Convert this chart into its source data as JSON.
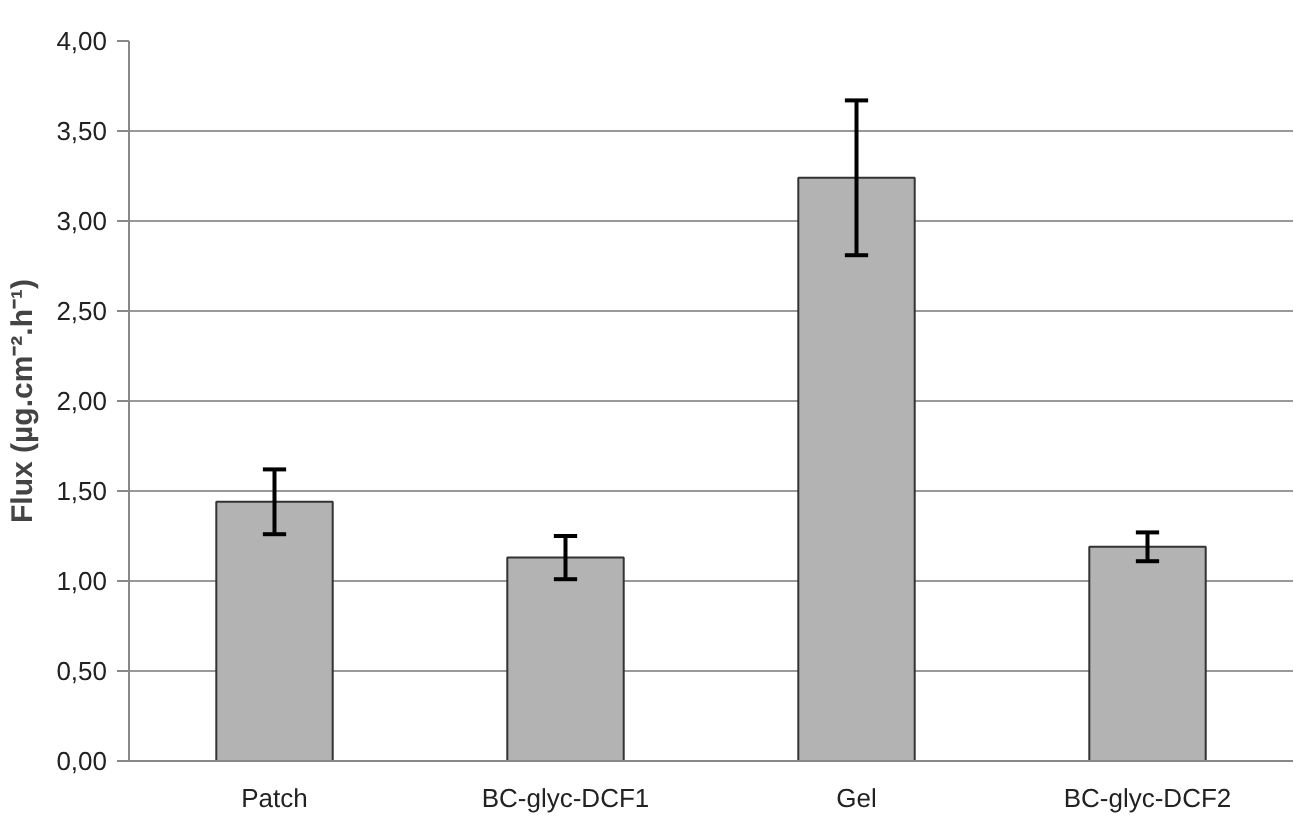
{
  "chart_data": {
    "type": "bar",
    "ylabel": "Flux (µg.cm⁻².h⁻¹)",
    "categories": [
      "Patch",
      "BC-glyc-DCF1",
      "Gel",
      "BC-glyc-DCF2"
    ],
    "values": [
      1.44,
      1.13,
      3.24,
      1.19
    ],
    "errors": [
      0.18,
      0.12,
      0.43,
      0.08
    ],
    "color": "#b3b3b3",
    "ylim": [
      0,
      4
    ],
    "yticks": [
      {
        "value": 0,
        "label": "0,00"
      },
      {
        "value": 0.5,
        "label": "0,50"
      },
      {
        "value": 1,
        "label": "1,00"
      },
      {
        "value": 1.5,
        "label": "1,50"
      },
      {
        "value": 2,
        "label": "2,00"
      },
      {
        "value": 2.5,
        "label": "2,50"
      },
      {
        "value": 3,
        "label": "3,00"
      },
      {
        "value": 3.5,
        "label": "3,50"
      },
      {
        "value": 4,
        "label": "4,00"
      }
    ],
    "grid": "y"
  }
}
